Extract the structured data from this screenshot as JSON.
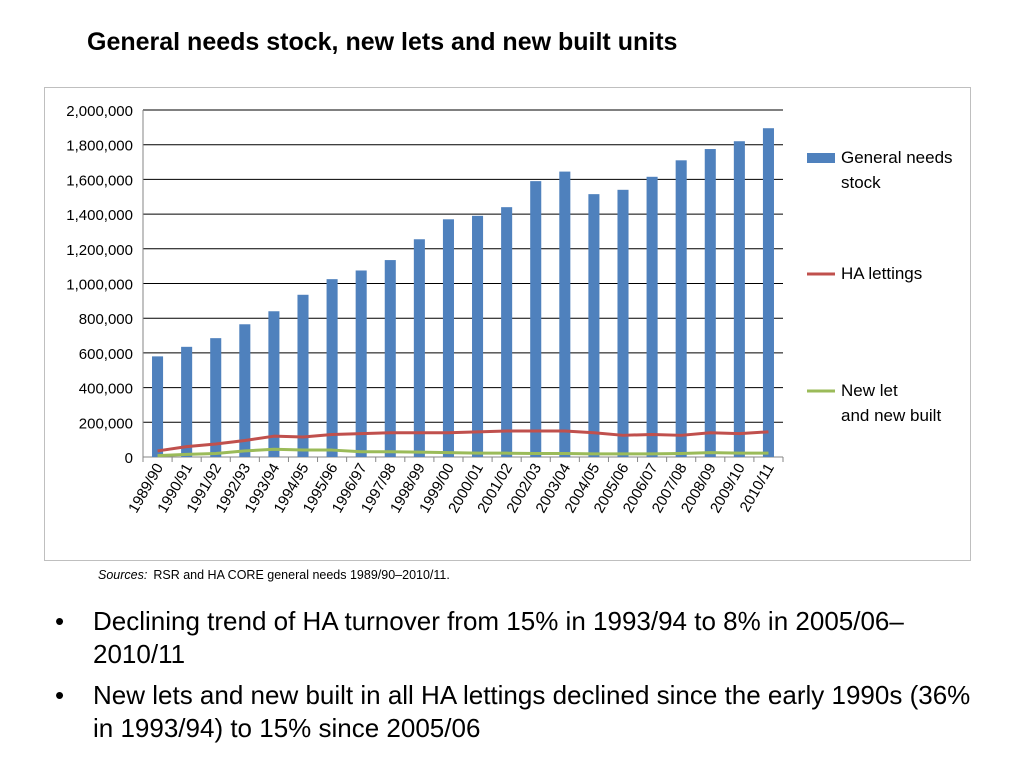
{
  "title": "General needs stock, new lets and new built units",
  "sources": {
    "label": "Sources:",
    "text": "RSR and HA CORE general needs 1989/90–2010/11."
  },
  "bullets": [
    "Declining trend of HA turnover from 15% in 1993/94 to 8% in 2005/06–2010/11",
    "New lets and new built in all HA lettings declined since the early 1990s (36% in 1993/94) to 15% since 2005/06"
  ],
  "bullet_glyph": "•",
  "chart_data": {
    "type": "bar",
    "title": "",
    "xlabel": "",
    "ylabel": "",
    "ylim": [
      0,
      2000000
    ],
    "yticks": [
      0,
      200000,
      400000,
      600000,
      800000,
      1000000,
      1200000,
      1400000,
      1600000,
      1800000,
      2000000
    ],
    "ytick_labels": [
      "0",
      "200,000",
      "400,000",
      "600,000",
      "800,000",
      "1,000,000",
      "1,200,000",
      "1,400,000",
      "1,600,000",
      "1,800,000",
      "2,000,000"
    ],
    "grid": true,
    "legend_position": "right",
    "categories": [
      "1989/90",
      "1990/91",
      "1991/92",
      "1992/93",
      "1993/94",
      "1994/95",
      "1995/96",
      "1996/97",
      "1997/98",
      "1998/99",
      "1999/00",
      "2000/01",
      "2001/02",
      "2002/03",
      "2003/04",
      "2004/05",
      "2005/06",
      "2006/07",
      "2007/08",
      "2008/09",
      "2009/10",
      "2010/11"
    ],
    "series": [
      {
        "name": "General needs stock",
        "type": "bar",
        "color": "#4f81bd",
        "values": [
          580000,
          635000,
          685000,
          765000,
          840000,
          935000,
          1025000,
          1075000,
          1135000,
          1255000,
          1370000,
          1390000,
          1440000,
          1590000,
          1645000,
          1515000,
          1540000,
          1615000,
          1710000,
          1775000,
          1820000,
          1895000
        ]
      },
      {
        "name": "HA lettings",
        "type": "line",
        "color": "#c0504d",
        "values": [
          35000,
          60000,
          75000,
          95000,
          120000,
          115000,
          130000,
          135000,
          140000,
          140000,
          140000,
          145000,
          150000,
          150000,
          150000,
          140000,
          125000,
          130000,
          125000,
          140000,
          135000,
          145000
        ]
      },
      {
        "name": "New let and new built",
        "type": "line",
        "color": "#9bbb59",
        "values": [
          8000,
          15000,
          20000,
          35000,
          45000,
          40000,
          40000,
          30000,
          30000,
          28000,
          25000,
          22000,
          22000,
          20000,
          20000,
          18000,
          18000,
          18000,
          20000,
          25000,
          22000,
          22000
        ]
      }
    ]
  }
}
